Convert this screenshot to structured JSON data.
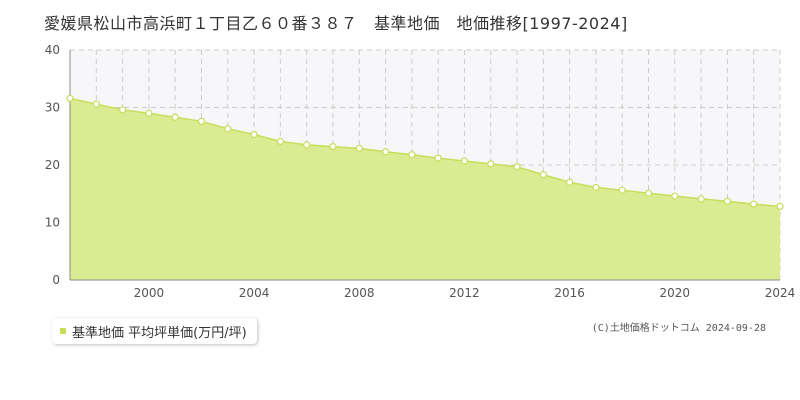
{
  "title": "愛媛県松山市高浜町１丁目乙６０番３８７　基準地価　地価推移[1997-2024]",
  "copyright": "(C)土地価格ドットコム 2024-09-28",
  "colors": {
    "area_fill": "#dbeb92",
    "line": "#c6de5a",
    "marker_fill": "#ffffff",
    "marker_stroke": "#c6de5a",
    "upper_fill": "#f7f7f9",
    "grid": "#cccccc",
    "axis": "#888888"
  },
  "chart_data": {
    "type": "area",
    "title": "",
    "xlabel": "",
    "ylabel": "",
    "xlim": [
      1997,
      2024
    ],
    "ylim": [
      0,
      40
    ],
    "grid": true,
    "legend_placement": "bottom-left",
    "x_tick_labels": [
      "2000",
      "2004",
      "2008",
      "2012",
      "2016",
      "2020",
      "2024"
    ],
    "x_ticks": [
      2000,
      2004,
      2008,
      2012,
      2016,
      2020,
      2024
    ],
    "y_ticks": [
      0,
      10,
      20,
      30,
      40
    ],
    "y_tick_labels": [
      "0",
      "10",
      "20",
      "30",
      "40"
    ],
    "series": [
      {
        "name": "基準地価 平均坪単価(万円/坪)",
        "x": [
          1997,
          1998,
          1999,
          2000,
          2001,
          2002,
          2003,
          2004,
          2005,
          2006,
          2007,
          2008,
          2009,
          2010,
          2011,
          2012,
          2013,
          2014,
          2015,
          2016,
          2017,
          2018,
          2019,
          2020,
          2021,
          2022,
          2023,
          2024
        ],
        "values": [
          31.6,
          30.6,
          29.6,
          29.0,
          28.3,
          27.6,
          26.3,
          25.3,
          24.1,
          23.5,
          23.2,
          22.9,
          22.3,
          21.8,
          21.2,
          20.7,
          20.2,
          19.7,
          18.3,
          17.0,
          16.1,
          15.6,
          15.1,
          14.6,
          14.1,
          13.7,
          13.2,
          12.8
        ]
      }
    ]
  }
}
